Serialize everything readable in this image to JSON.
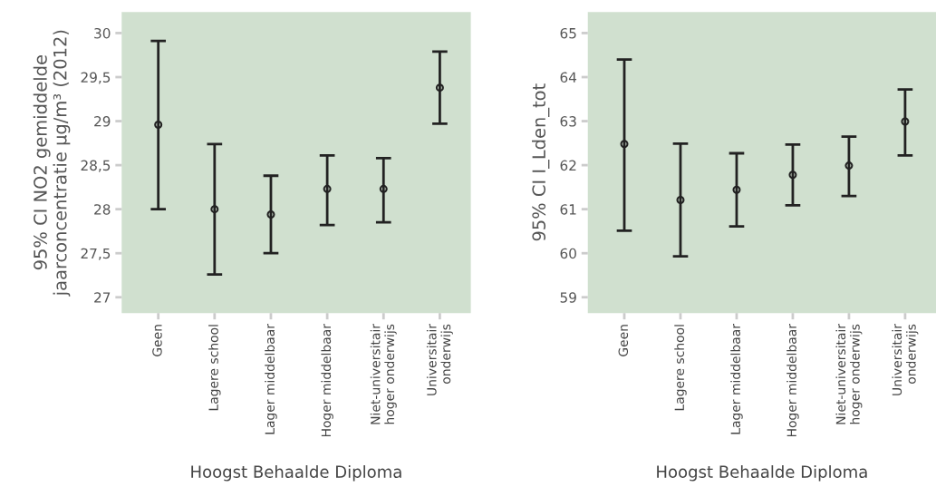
{
  "chart_data": [
    {
      "type": "scatter",
      "xlabel": "Hoogst Behaalde Diploma",
      "ylabel": "95% CI NO2 gemiddelde\njaarconcentratie µg/m³ (2012)",
      "categories": [
        "Geen",
        "Lagere school",
        "Lager middelbaar",
        "Hoger middelbaar",
        "Niet-universitair\nhoger onderwijs",
        "Universitair\nonderwijs"
      ],
      "series": [
        {
          "color": "#222222",
          "values": [
            28.96,
            28.0,
            27.94,
            28.23,
            28.23,
            29.38
          ],
          "errors": [
            [
              28.0,
              29.91
            ],
            [
              27.26,
              28.74
            ],
            [
              27.5,
              28.38
            ],
            [
              27.82,
              28.61
            ],
            [
              27.85,
              28.58
            ],
            [
              28.97,
              29.79
            ]
          ]
        }
      ],
      "ylim": [
        26.82,
        30.24
      ],
      "yticks": [
        27,
        {
          "value": 27.5,
          "label": "27,5"
        },
        28,
        {
          "value": 28.5,
          "label": "28,5"
        },
        29,
        {
          "value": 29.5,
          "label": "29,5"
        },
        30
      ],
      "marker": "circle",
      "grid": false,
      "legend": false
    },
    {
      "type": "scatter",
      "xlabel": "Hoogst Behaalde Diploma",
      "ylabel": "95% CI I_Lden_tot",
      "categories": [
        "Geen",
        "Lagere school",
        "Lager middelbaar",
        "Hoger middelbaar",
        "Niet-universitair\nhoger onderwijs",
        "Universitair\nonderwijs"
      ],
      "series": [
        {
          "color": "#222222",
          "values": [
            62.48,
            61.21,
            61.44,
            61.78,
            61.99,
            62.99
          ],
          "errors": [
            [
              60.51,
              64.4
            ],
            [
              59.93,
              62.49
            ],
            [
              60.61,
              62.27
            ],
            [
              61.09,
              62.47
            ],
            [
              61.3,
              62.65
            ],
            [
              62.22,
              63.72
            ]
          ]
        }
      ],
      "ylim": [
        58.64,
        65.48
      ],
      "yticks": [
        59,
        60,
        61,
        62,
        63,
        64,
        65
      ],
      "marker": "circle",
      "grid": false,
      "legend": false
    }
  ]
}
